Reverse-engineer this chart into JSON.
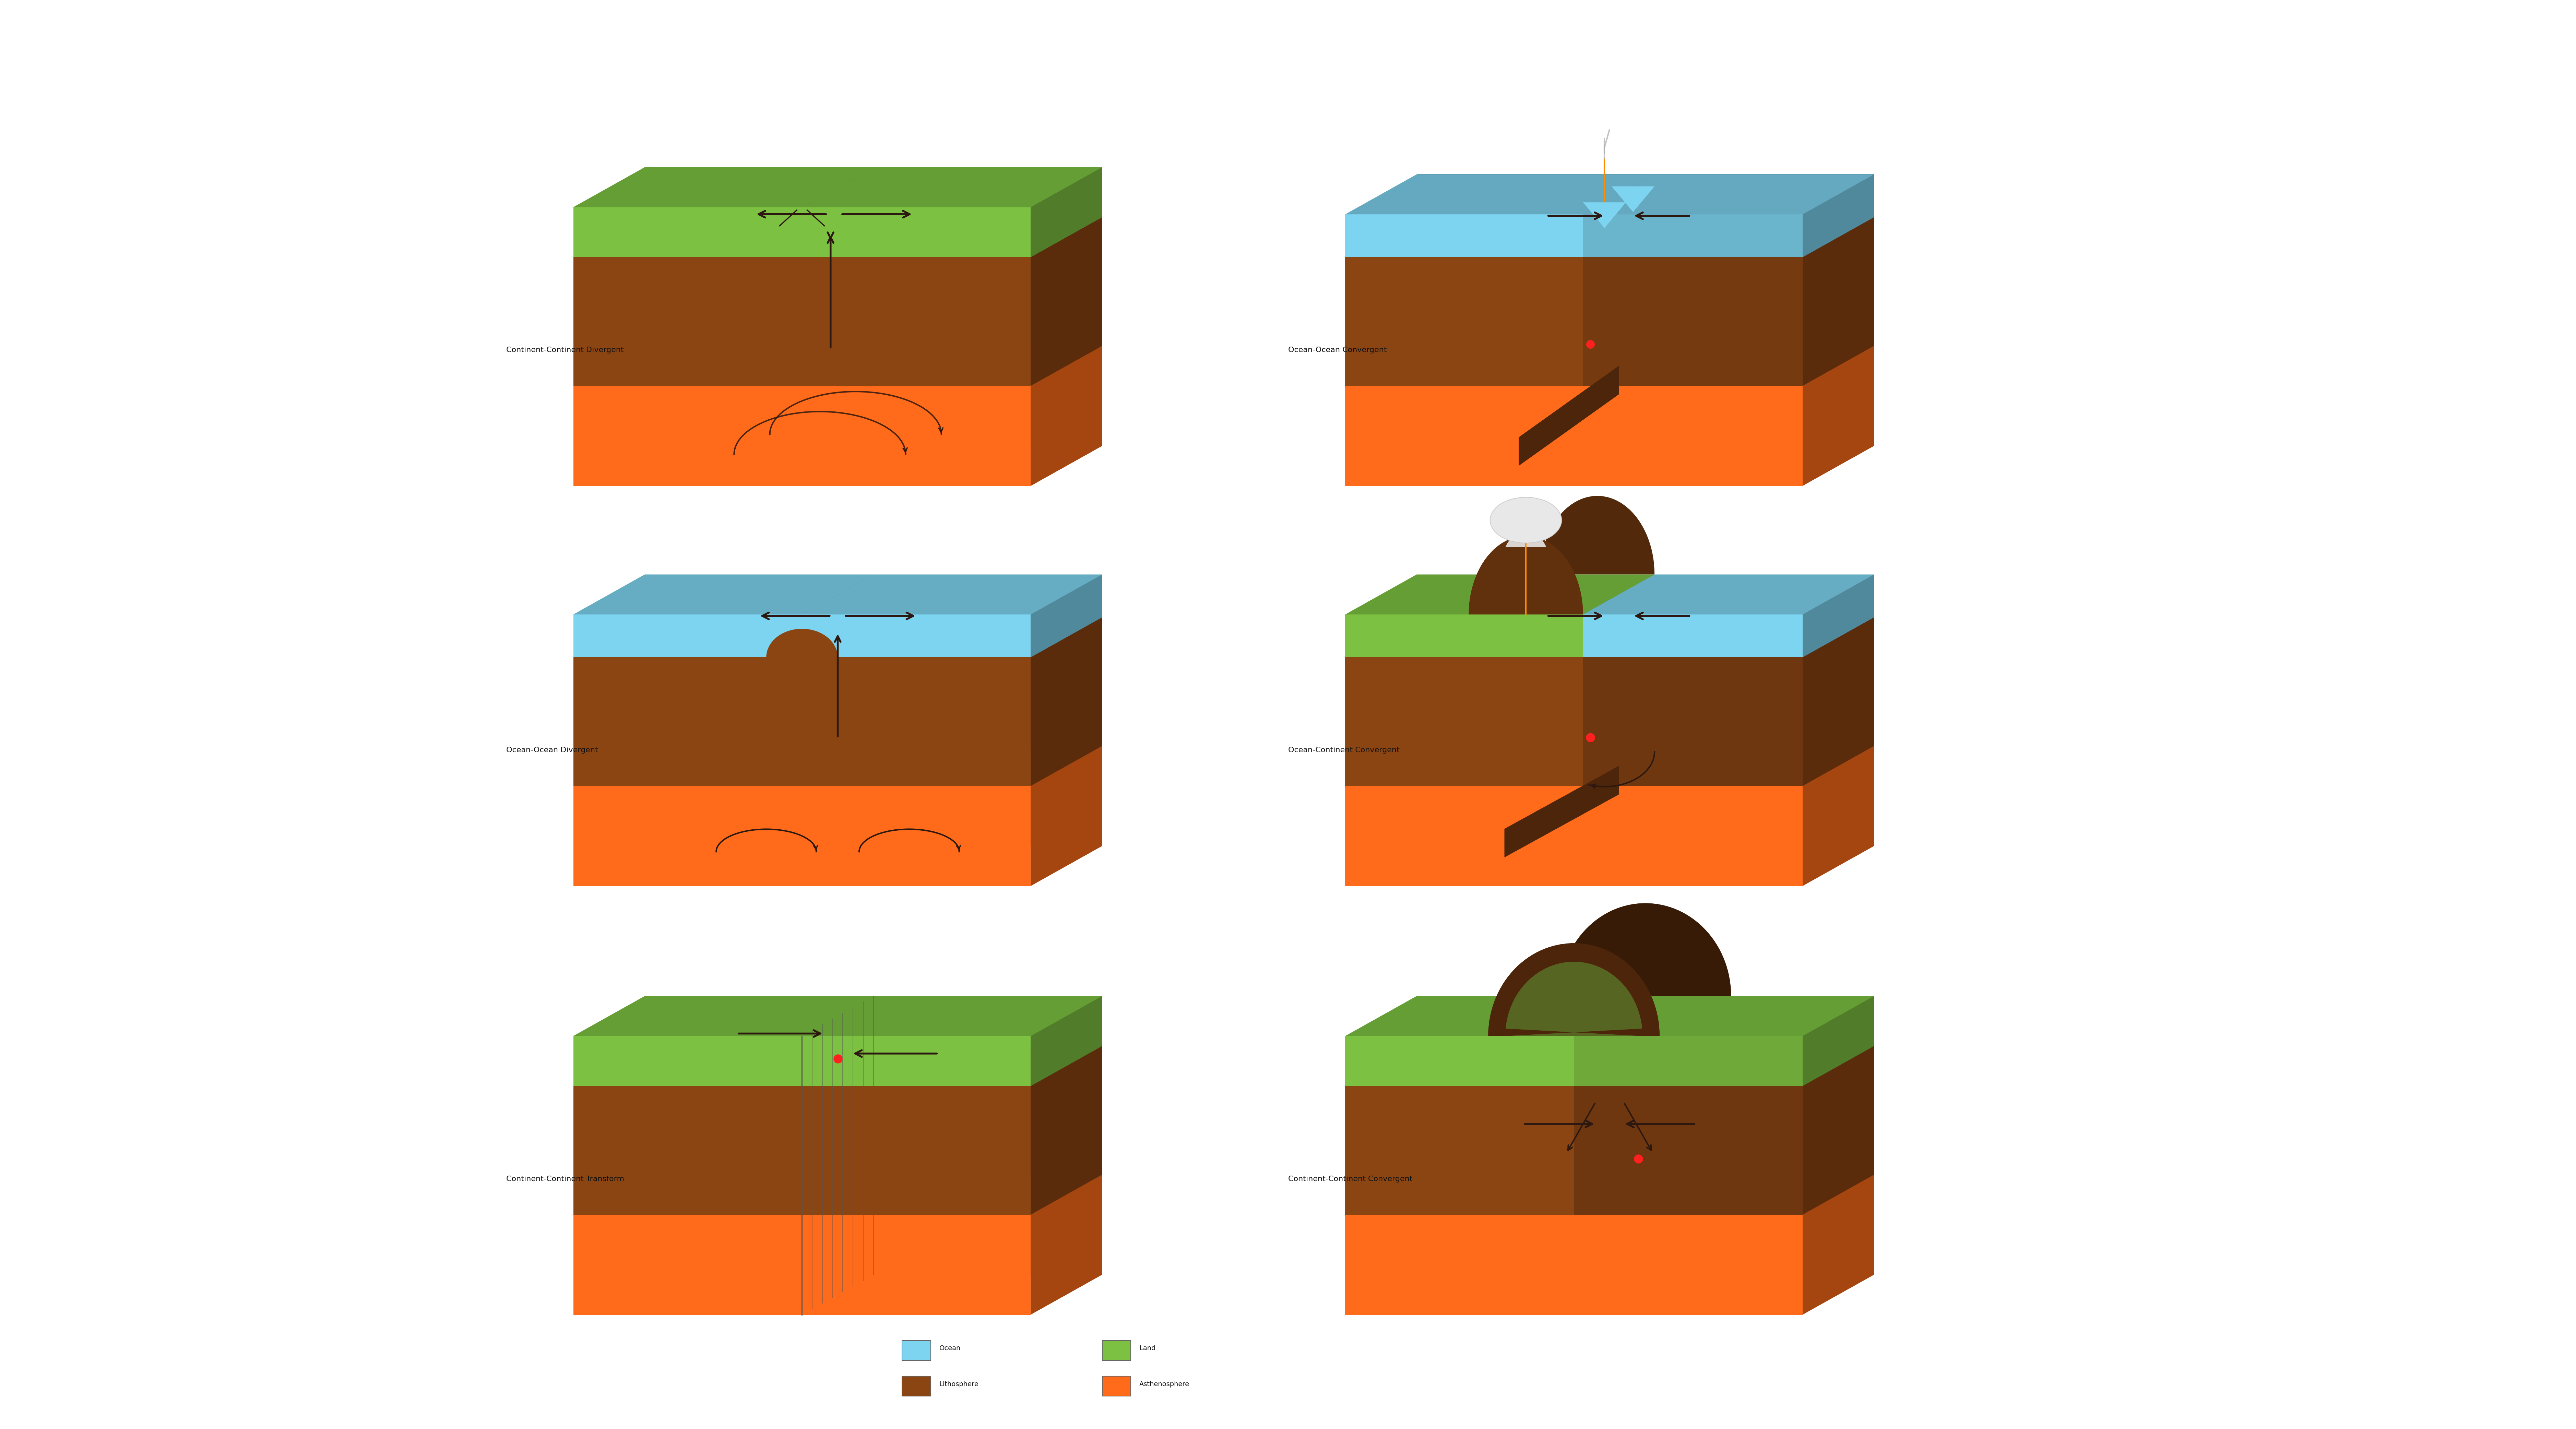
{
  "background_color": "#ffffff",
  "colors": {
    "astheno": "#FF6B1A",
    "astheno_side": "#CC4A00",
    "litho": "#8B4513",
    "litho_side": "#5C2D0A",
    "litho_top": "#A0522D",
    "land": "#7DC142",
    "land_side": "#4A8A1E",
    "land_top": "#8FCF55",
    "ocean": "#7DD4F0",
    "ocean_side": "#4AAAC0",
    "ocean_top": "#9EDFF5",
    "arrow": "#2C1810",
    "red_dot": "#FF2020",
    "orange_line": "#FF8C00",
    "smoke": "#AAAAAA",
    "volcano_white": "#E8E8E8"
  },
  "labels": {
    "top_left": "Continent-Continent Divergent",
    "top_right": "Ocean-Ocean Convergent",
    "mid_left": "Ocean-Ocean Divergent",
    "mid_right": "Ocean-Continent Convergent",
    "bot_left": "Continent-Continent Transform",
    "bot_right": "Continent-Continent Convergent"
  },
  "legend": [
    {
      "label": "Ocean",
      "color": "#7DD4F0"
    },
    {
      "label": "Land",
      "color": "#7DC142"
    },
    {
      "label": "Lithosphere",
      "color": "#8B4513"
    },
    {
      "label": "Asthenosphere",
      "color": "#FF6B1A"
    }
  ],
  "figsize": [
    75.11,
    41.68
  ],
  "dpi": 100
}
